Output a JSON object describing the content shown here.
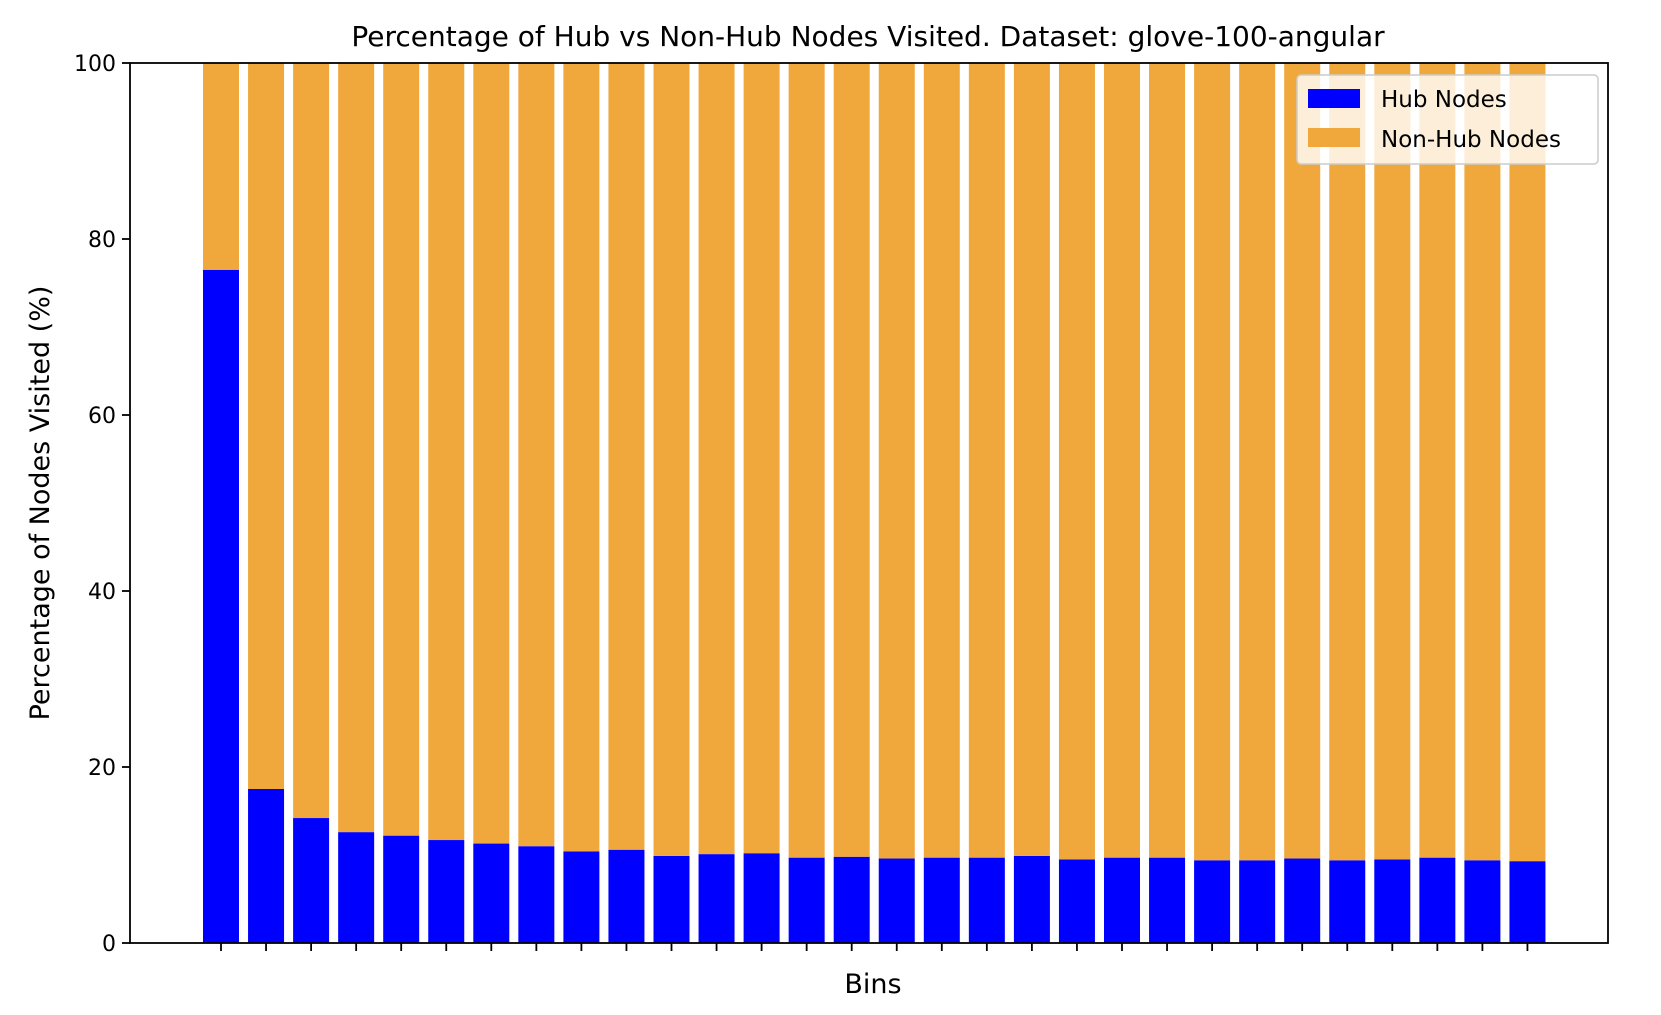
{
  "chart_data": {
    "type": "bar",
    "stacked": true,
    "title": "Percentage of Hub vs Non-Hub Nodes Visited. Dataset: glove-100-angular",
    "xlabel": "Bins",
    "ylabel": "Percentage of Nodes Visited (%)",
    "ylim": [
      0,
      100
    ],
    "yticks": [
      0,
      20,
      40,
      60,
      80,
      100
    ],
    "bin_count": 30,
    "grid": false,
    "legend_position": "top-right",
    "series": [
      {
        "name": "Hub Nodes",
        "color": "#0000ff",
        "values": [
          76.5,
          17.5,
          14.2,
          12.6,
          12.2,
          11.7,
          11.3,
          11.0,
          10.4,
          10.6,
          9.9,
          10.1,
          10.2,
          9.7,
          9.8,
          9.6,
          9.7,
          9.7,
          9.9,
          9.5,
          9.7,
          9.7,
          9.4,
          9.4,
          9.6,
          9.4,
          9.5,
          9.7,
          9.4,
          9.3
        ]
      },
      {
        "name": "Non-Hub Nodes",
        "color": "#f0a83c",
        "values": [
          23.5,
          82.5,
          85.8,
          87.4,
          87.8,
          88.3,
          88.7,
          89.0,
          89.6,
          89.4,
          90.1,
          89.9,
          89.8,
          90.3,
          90.2,
          90.4,
          90.3,
          90.3,
          90.1,
          90.5,
          90.3,
          90.3,
          90.6,
          90.6,
          90.4,
          90.6,
          90.5,
          90.3,
          90.6,
          90.7
        ]
      }
    ]
  }
}
